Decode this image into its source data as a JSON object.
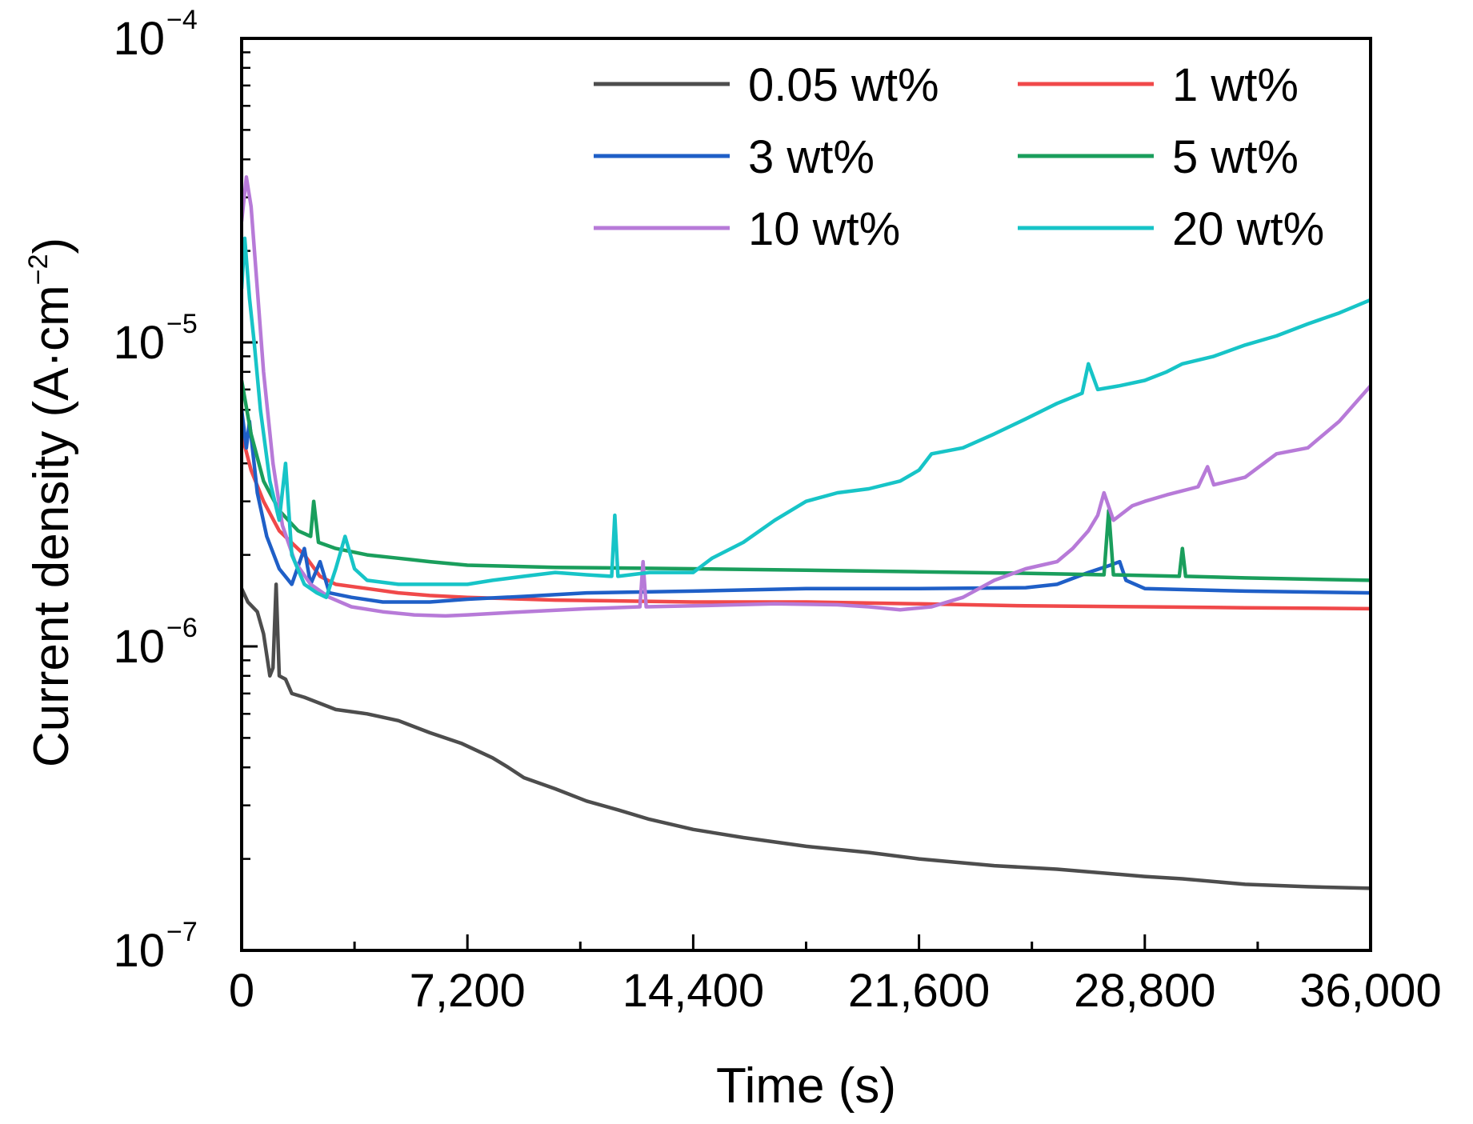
{
  "chart_data": {
    "type": "line",
    "title": "",
    "xlabel": "Time (s)",
    "ylabel": "Current density (A·cm⁻²)",
    "ylabel_parts": {
      "main": "Current density (A·cm",
      "sup": "−2",
      "close": ")"
    },
    "yscale": "log",
    "xlim": [
      0,
      36000
    ],
    "ylim": [
      1e-07,
      0.0001
    ],
    "x_ticks": [
      0,
      7200,
      14400,
      21600,
      28800,
      36000
    ],
    "x_tick_labels": [
      "0",
      "7,200",
      "14,400",
      "21,600",
      "28,800",
      "36,000"
    ],
    "y_ticks": [
      {
        "value": 0.0001,
        "base": "10",
        "exp": "−4"
      },
      {
        "value": 1e-05,
        "base": "10",
        "exp": "−5"
      },
      {
        "value": 1e-06,
        "base": "10",
        "exp": "−6"
      },
      {
        "value": 1e-07,
        "base": "10",
        "exp": "−7"
      }
    ],
    "legend_position": "top-right",
    "series": [
      {
        "name": "0.05 wt%",
        "color": "#4d4d4d",
        "points": [
          [
            0,
            1.55e-06
          ],
          [
            200,
            1.4e-06
          ],
          [
            500,
            1.3e-06
          ],
          [
            700,
            1.1e-06
          ],
          [
            900,
            8e-07
          ],
          [
            1000,
            8.5e-07
          ],
          [
            1100,
            1.6e-06
          ],
          [
            1200,
            8e-07
          ],
          [
            1400,
            7.8e-07
          ],
          [
            1600,
            7e-07
          ],
          [
            2000,
            6.8e-07
          ],
          [
            3000,
            6.2e-07
          ],
          [
            4000,
            6e-07
          ],
          [
            5000,
            5.7e-07
          ],
          [
            6000,
            5.2e-07
          ],
          [
            7000,
            4.8e-07
          ],
          [
            8000,
            4.3e-07
          ],
          [
            8500,
            4e-07
          ],
          [
            9000,
            3.7e-07
          ],
          [
            10000,
            3.4e-07
          ],
          [
            11000,
            3.1e-07
          ],
          [
            12000,
            2.9e-07
          ],
          [
            13000,
            2.7e-07
          ],
          [
            14400,
            2.5e-07
          ],
          [
            16000,
            2.35e-07
          ],
          [
            18000,
            2.2e-07
          ],
          [
            20000,
            2.1e-07
          ],
          [
            21600,
            2e-07
          ],
          [
            24000,
            1.9e-07
          ],
          [
            26000,
            1.85e-07
          ],
          [
            28800,
            1.75e-07
          ],
          [
            30000,
            1.72e-07
          ],
          [
            32000,
            1.65e-07
          ],
          [
            34000,
            1.62e-07
          ],
          [
            36000,
            1.6e-07
          ]
        ]
      },
      {
        "name": "1 wt%",
        "color": "#f0494a",
        "points": [
          [
            0,
            5e-06
          ],
          [
            300,
            3.8e-06
          ],
          [
            700,
            3e-06
          ],
          [
            1200,
            2.4e-06
          ],
          [
            2000,
            2e-06
          ],
          [
            2500,
            1.7e-06
          ],
          [
            3000,
            1.6e-06
          ],
          [
            4000,
            1.55e-06
          ],
          [
            5000,
            1.5e-06
          ],
          [
            6000,
            1.47e-06
          ],
          [
            7200,
            1.45e-06
          ],
          [
            10000,
            1.42e-06
          ],
          [
            14400,
            1.4e-06
          ],
          [
            18000,
            1.4e-06
          ],
          [
            21600,
            1.38e-06
          ],
          [
            25000,
            1.36e-06
          ],
          [
            28800,
            1.35e-06
          ],
          [
            32000,
            1.34e-06
          ],
          [
            36000,
            1.33e-06
          ]
        ]
      },
      {
        "name": "3 wt%",
        "color": "#1f5fc7",
        "points": [
          [
            0,
            6e-06
          ],
          [
            150,
            4.5e-06
          ],
          [
            250,
            5.5e-06
          ],
          [
            500,
            3.2e-06
          ],
          [
            800,
            2.3e-06
          ],
          [
            1200,
            1.8e-06
          ],
          [
            1600,
            1.6e-06
          ],
          [
            2000,
            2.1e-06
          ],
          [
            2200,
            1.6e-06
          ],
          [
            2500,
            1.9e-06
          ],
          [
            2800,
            1.5e-06
          ],
          [
            3500,
            1.45e-06
          ],
          [
            4500,
            1.4e-06
          ],
          [
            6000,
            1.4e-06
          ],
          [
            7200,
            1.43e-06
          ],
          [
            9000,
            1.46e-06
          ],
          [
            11000,
            1.5e-06
          ],
          [
            14400,
            1.52e-06
          ],
          [
            18000,
            1.55e-06
          ],
          [
            21600,
            1.55e-06
          ],
          [
            25000,
            1.56e-06
          ],
          [
            26000,
            1.6e-06
          ],
          [
            27000,
            1.75e-06
          ],
          [
            27700,
            1.85e-06
          ],
          [
            28000,
            1.9e-06
          ],
          [
            28200,
            1.65e-06
          ],
          [
            28800,
            1.55e-06
          ],
          [
            32000,
            1.52e-06
          ],
          [
            36000,
            1.5e-06
          ]
        ]
      },
      {
        "name": "5 wt%",
        "color": "#1a9e5c",
        "points": [
          [
            0,
            7.5e-06
          ],
          [
            300,
            5e-06
          ],
          [
            700,
            3.5e-06
          ],
          [
            1200,
            2.8e-06
          ],
          [
            1800,
            2.4e-06
          ],
          [
            2200,
            2.3e-06
          ],
          [
            2300,
            3e-06
          ],
          [
            2450,
            2.2e-06
          ],
          [
            3000,
            2.1e-06
          ],
          [
            4000,
            2e-06
          ],
          [
            5000,
            1.95e-06
          ],
          [
            6000,
            1.9e-06
          ],
          [
            7200,
            1.85e-06
          ],
          [
            10000,
            1.82e-06
          ],
          [
            14400,
            1.8e-06
          ],
          [
            18000,
            1.78e-06
          ],
          [
            21600,
            1.76e-06
          ],
          [
            25000,
            1.74e-06
          ],
          [
            27500,
            1.72e-06
          ],
          [
            27650,
            2.8e-06
          ],
          [
            27800,
            1.72e-06
          ],
          [
            29900,
            1.7e-06
          ],
          [
            30000,
            2.1e-06
          ],
          [
            30100,
            1.7e-06
          ],
          [
            32000,
            1.68e-06
          ],
          [
            36000,
            1.65e-06
          ]
        ]
      },
      {
        "name": "10 wt%",
        "color": "#b77ad8",
        "points": [
          [
            0,
            2.5e-05
          ],
          [
            150,
            3.5e-05
          ],
          [
            300,
            2.8e-05
          ],
          [
            500,
            1.5e-05
          ],
          [
            700,
            8e-06
          ],
          [
            1000,
            4e-06
          ],
          [
            1300,
            2.5e-06
          ],
          [
            1700,
            1.9e-06
          ],
          [
            2200,
            1.6e-06
          ],
          [
            2800,
            1.45e-06
          ],
          [
            3500,
            1.35e-06
          ],
          [
            4500,
            1.3e-06
          ],
          [
            5500,
            1.27e-06
          ],
          [
            6500,
            1.26e-06
          ],
          [
            7200,
            1.27e-06
          ],
          [
            9000,
            1.3e-06
          ],
          [
            11000,
            1.33e-06
          ],
          [
            12700,
            1.35e-06
          ],
          [
            12800,
            1.9e-06
          ],
          [
            12900,
            1.35e-06
          ],
          [
            14400,
            1.36e-06
          ],
          [
            17000,
            1.38e-06
          ],
          [
            19000,
            1.37e-06
          ],
          [
            20000,
            1.35e-06
          ],
          [
            21000,
            1.32e-06
          ],
          [
            22000,
            1.35e-06
          ],
          [
            23000,
            1.45e-06
          ],
          [
            24000,
            1.65e-06
          ],
          [
            25000,
            1.8e-06
          ],
          [
            25500,
            1.85e-06
          ],
          [
            26000,
            1.9e-06
          ],
          [
            26500,
            2.1e-06
          ],
          [
            27000,
            2.4e-06
          ],
          [
            27300,
            2.7e-06
          ],
          [
            27500,
            3.2e-06
          ],
          [
            27800,
            2.6e-06
          ],
          [
            28400,
            2.9e-06
          ],
          [
            28800,
            3e-06
          ],
          [
            29500,
            3.15e-06
          ],
          [
            30500,
            3.35e-06
          ],
          [
            30800,
            3.9e-06
          ],
          [
            31000,
            3.4e-06
          ],
          [
            32000,
            3.6e-06
          ],
          [
            33000,
            4.3e-06
          ],
          [
            34000,
            4.5e-06
          ],
          [
            35000,
            5.5e-06
          ],
          [
            36000,
            7.2e-06
          ]
        ]
      },
      {
        "name": "20 wt%",
        "color": "#17c4c7",
        "points": [
          [
            0,
            1.5e-05
          ],
          [
            100,
            2.2e-05
          ],
          [
            250,
            1.4e-05
          ],
          [
            400,
            1e-05
          ],
          [
            600,
            6e-06
          ],
          [
            900,
            3.5e-06
          ],
          [
            1200,
            2.6e-06
          ],
          [
            1400,
            4e-06
          ],
          [
            1600,
            2e-06
          ],
          [
            2000,
            1.6e-06
          ],
          [
            2400,
            1.5e-06
          ],
          [
            2700,
            1.45e-06
          ],
          [
            3000,
            1.8e-06
          ],
          [
            3300,
            2.3e-06
          ],
          [
            3600,
            1.8e-06
          ],
          [
            4000,
            1.65e-06
          ],
          [
            5000,
            1.6e-06
          ],
          [
            6000,
            1.6e-06
          ],
          [
            7200,
            1.6e-06
          ],
          [
            8000,
            1.65e-06
          ],
          [
            9000,
            1.7e-06
          ],
          [
            10000,
            1.75e-06
          ],
          [
            11000,
            1.72e-06
          ],
          [
            11800,
            1.7e-06
          ],
          [
            11900,
            2.7e-06
          ],
          [
            12000,
            1.7e-06
          ],
          [
            13000,
            1.75e-06
          ],
          [
            14400,
            1.75e-06
          ],
          [
            15000,
            1.95e-06
          ],
          [
            16000,
            2.2e-06
          ],
          [
            17000,
            2.6e-06
          ],
          [
            18000,
            3e-06
          ],
          [
            19000,
            3.2e-06
          ],
          [
            20000,
            3.3e-06
          ],
          [
            21000,
            3.5e-06
          ],
          [
            21600,
            3.8e-06
          ],
          [
            22000,
            4.3e-06
          ],
          [
            23000,
            4.5e-06
          ],
          [
            24000,
            5e-06
          ],
          [
            25000,
            5.6e-06
          ],
          [
            26000,
            6.3e-06
          ],
          [
            26800,
            6.8e-06
          ],
          [
            27000,
            8.5e-06
          ],
          [
            27300,
            7e-06
          ],
          [
            28000,
            7.2e-06
          ],
          [
            28800,
            7.5e-06
          ],
          [
            29500,
            8e-06
          ],
          [
            30000,
            8.5e-06
          ],
          [
            31000,
            9e-06
          ],
          [
            32000,
            9.8e-06
          ],
          [
            33000,
            1.05e-05
          ],
          [
            34000,
            1.15e-05
          ],
          [
            35000,
            1.25e-05
          ],
          [
            36000,
            1.38e-05
          ]
        ]
      }
    ]
  }
}
